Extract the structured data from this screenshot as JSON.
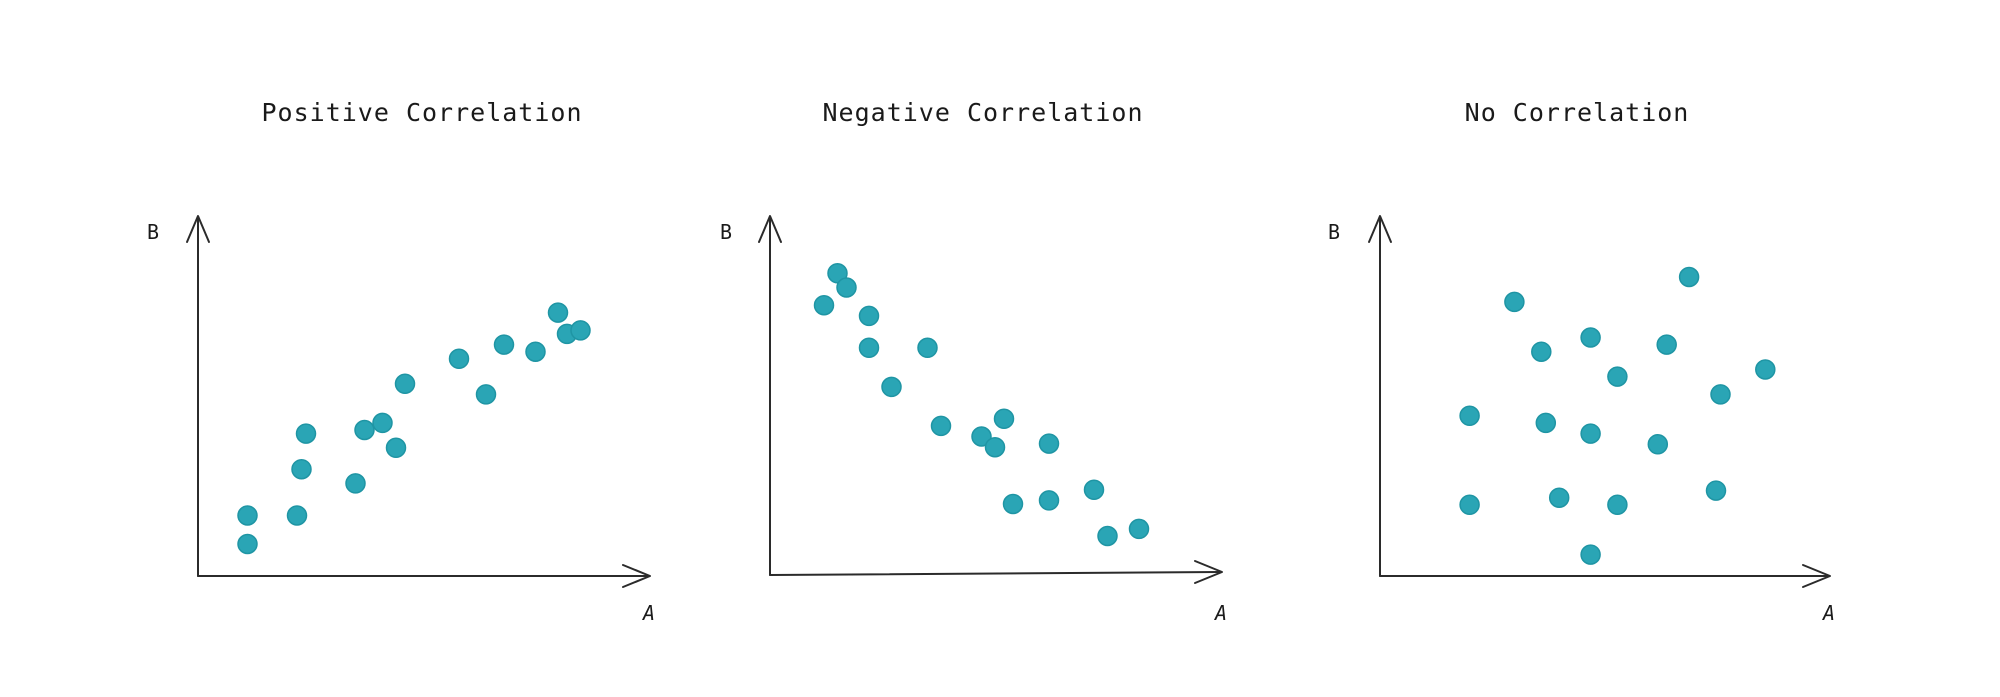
{
  "chart_data": [
    {
      "type": "scatter",
      "title": "Positive Correlation",
      "xlabel": "A",
      "ylabel": "B",
      "xlim": [
        0,
        10
      ],
      "ylim": [
        0,
        10
      ],
      "grid": false,
      "color": "#2aa5b5",
      "points": [
        {
          "x": 1.1,
          "y": 0.9
        },
        {
          "x": 1.1,
          "y": 1.7
        },
        {
          "x": 2.2,
          "y": 1.7
        },
        {
          "x": 2.3,
          "y": 3.0
        },
        {
          "x": 2.4,
          "y": 4.0
        },
        {
          "x": 3.5,
          "y": 2.6
        },
        {
          "x": 3.7,
          "y": 4.1
        },
        {
          "x": 4.1,
          "y": 4.3
        },
        {
          "x": 4.4,
          "y": 3.6
        },
        {
          "x": 4.6,
          "y": 5.4
        },
        {
          "x": 5.8,
          "y": 6.1
        },
        {
          "x": 6.4,
          "y": 5.1
        },
        {
          "x": 6.8,
          "y": 6.5
        },
        {
          "x": 7.5,
          "y": 6.3
        },
        {
          "x": 8.0,
          "y": 7.4
        },
        {
          "x": 8.2,
          "y": 6.8
        },
        {
          "x": 8.5,
          "y": 6.9
        }
      ]
    },
    {
      "type": "scatter",
      "title": "Negative Correlation",
      "xlabel": "A",
      "ylabel": "B",
      "xlim": [
        0,
        10
      ],
      "ylim": [
        0,
        10
      ],
      "grid": false,
      "color": "#2aa5b5",
      "points": [
        {
          "x": 1.2,
          "y": 7.6
        },
        {
          "x": 1.5,
          "y": 8.5
        },
        {
          "x": 1.7,
          "y": 8.1
        },
        {
          "x": 2.2,
          "y": 7.3
        },
        {
          "x": 2.2,
          "y": 6.4
        },
        {
          "x": 2.7,
          "y": 5.3
        },
        {
          "x": 3.5,
          "y": 6.4
        },
        {
          "x": 3.8,
          "y": 4.2
        },
        {
          "x": 4.7,
          "y": 3.9
        },
        {
          "x": 5.0,
          "y": 3.6
        },
        {
          "x": 5.2,
          "y": 4.4
        },
        {
          "x": 5.4,
          "y": 2.0
        },
        {
          "x": 6.2,
          "y": 2.1
        },
        {
          "x": 6.2,
          "y": 3.7
        },
        {
          "x": 7.2,
          "y": 2.4
        },
        {
          "x": 7.5,
          "y": 1.1
        },
        {
          "x": 8.2,
          "y": 1.3
        }
      ]
    },
    {
      "type": "scatter",
      "title": "No Correlation",
      "xlabel": "A",
      "ylabel": "B",
      "xlim": [
        0,
        10
      ],
      "ylim": [
        0,
        10
      ],
      "grid": false,
      "color": "#2aa5b5",
      "points": [
        {
          "x": 2.0,
          "y": 4.5
        },
        {
          "x": 2.0,
          "y": 2.0
        },
        {
          "x": 3.0,
          "y": 7.7
        },
        {
          "x": 3.6,
          "y": 6.3
        },
        {
          "x": 3.7,
          "y": 4.3
        },
        {
          "x": 4.0,
          "y": 2.2
        },
        {
          "x": 4.7,
          "y": 6.7
        },
        {
          "x": 4.7,
          "y": 4.0
        },
        {
          "x": 4.7,
          "y": 0.6
        },
        {
          "x": 5.3,
          "y": 5.6
        },
        {
          "x": 5.3,
          "y": 2.0
        },
        {
          "x": 6.2,
          "y": 3.7
        },
        {
          "x": 6.4,
          "y": 6.5
        },
        {
          "x": 6.9,
          "y": 8.4
        },
        {
          "x": 7.5,
          "y": 2.4
        },
        {
          "x": 7.6,
          "y": 5.1
        },
        {
          "x": 8.6,
          "y": 5.8
        }
      ]
    }
  ]
}
